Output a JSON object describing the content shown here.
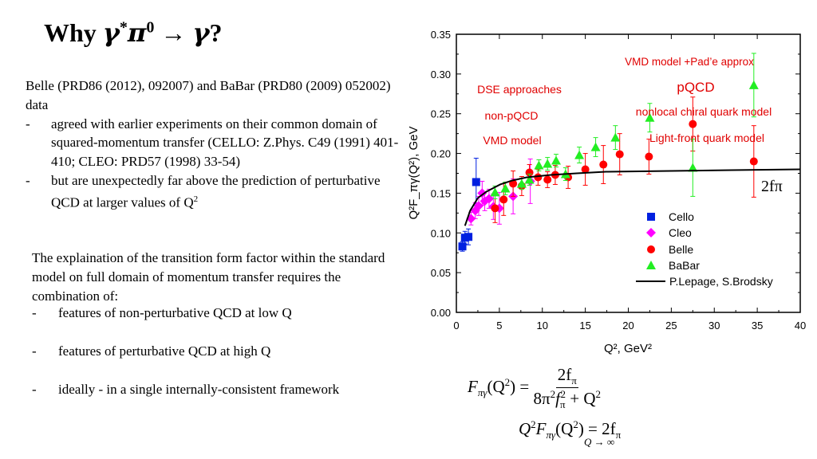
{
  "slide": {
    "title_prefix": "Why ",
    "title_math": "γ",
    "title_star": "*",
    "title_pi": "π",
    "title_zero": "0",
    "title_arrow": " → ",
    "title_gamma": "γ",
    "title_q": "?",
    "intro": "Belle (PRD86 (2012), 092007) and BaBar (PRD80 (2009) 052002) data",
    "bullets1": [
      "agreed with earlier experiments on their common domain of squared-momentum transfer (CELLO: Z.Phys. C49 (1991) 401-410; CLEO: PRD57 (1998) 33-54)",
      "but are unexpectedly far above the prediction of perturbative QCD at larger values of Q"
    ],
    "bullet_dash": "-",
    "sup2": "2",
    "para2": "The explaination of the transition form factor within the standard model on full domain of momentum transfer requires the combination of:",
    "bullets2": [
      "features of non-perturbative QCD at low Q",
      "features of perturbative QCD at high Q",
      "ideally - in a single internally-consistent framework"
    ]
  },
  "formulas": {
    "f1_lhs": "F",
    "f1_sub": "πγ",
    "f1_arg": "(Q",
    "f1_arg2": ") =",
    "f1_num": "2f",
    "f1_den": "8π",
    "f1_den2": "f",
    "f1_den3": " + Q",
    "f2_main": "Q",
    "f2_F": "F",
    "f2_rest": "(Q",
    "f2_eq": ") = 2f",
    "f2_limit": "Q → ∞",
    "pi_sub": "π",
    "two": "2"
  },
  "chart_data": {
    "type": "scatter",
    "xlabel": "Q², GeV²",
    "ylabel": "Q²F_πγ(Q²), GeV",
    "xlim": [
      0,
      40
    ],
    "ylim": [
      0,
      0.35
    ],
    "x_ticks": [
      "0",
      "5",
      "10",
      "15",
      "20",
      "25",
      "30",
      "35",
      "40"
    ],
    "y_ticks": [
      "0.00",
      "0.05",
      "0.10",
      "0.15",
      "0.20",
      "0.25",
      "0.30",
      "0.35"
    ],
    "grid": false,
    "legend_placement": "bottom-right",
    "series": [
      {
        "name": "Cello",
        "marker": "square",
        "color": "#0020e0",
        "x": [
          0.7,
          1.0,
          1.4,
          2.3
        ],
        "y": [
          0.083,
          0.094,
          0.095,
          0.164
        ],
        "err": [
          0.006,
          0.008,
          0.01,
          0.03
        ]
      },
      {
        "name": "Cleo",
        "marker": "diamond",
        "color": "#ff00ff",
        "x": [
          1.7,
          2.2,
          2.6,
          3.0,
          3.3,
          3.8,
          4.3,
          5.0,
          6.6,
          8.6
        ],
        "y": [
          0.118,
          0.128,
          0.134,
          0.15,
          0.14,
          0.143,
          0.133,
          0.131,
          0.146,
          0.165
        ],
        "err": [
          0.008,
          0.01,
          0.012,
          0.015,
          0.012,
          0.012,
          0.016,
          0.02,
          0.022,
          0.028
        ]
      },
      {
        "name": "Belle",
        "marker": "circle",
        "color": "#ff0000",
        "x": [
          4.5,
          5.5,
          6.6,
          7.6,
          8.5,
          9.5,
          10.6,
          11.5,
          13.0,
          15.0,
          17.1,
          19.0,
          22.4,
          27.5,
          34.6
        ],
        "y": [
          0.131,
          0.142,
          0.162,
          0.159,
          0.176,
          0.17,
          0.167,
          0.173,
          0.17,
          0.18,
          0.186,
          0.199,
          0.196,
          0.237,
          0.19
        ],
        "err": [
          0.018,
          0.02,
          0.016,
          0.012,
          0.01,
          0.01,
          0.01,
          0.012,
          0.014,
          0.02,
          0.024,
          0.026,
          0.022,
          0.034,
          0.045
        ]
      },
      {
        "name": "BaBar",
        "marker": "triangle",
        "color": "#22ee22",
        "x": [
          4.5,
          5.7,
          7.6,
          8.5,
          9.6,
          10.6,
          11.6,
          12.7,
          14.3,
          16.2,
          18.5,
          22.5,
          27.5,
          34.6
        ],
        "y": [
          0.151,
          0.156,
          0.162,
          0.167,
          0.185,
          0.187,
          0.191,
          0.174,
          0.198,
          0.208,
          0.22,
          0.245,
          0.182,
          0.286
        ],
        "err": [
          0.008,
          0.008,
          0.007,
          0.007,
          0.007,
          0.008,
          0.008,
          0.008,
          0.01,
          0.012,
          0.015,
          0.018,
          0.036,
          0.04
        ]
      },
      {
        "name": "P.Lepage, S.Brodsky",
        "marker": "line",
        "color": "#000000",
        "x": [
          1.0,
          1.6,
          2.5,
          3.5,
          5.1,
          6.5,
          8.2,
          11,
          14,
          17.4,
          25,
          32,
          40
        ],
        "y": [
          0.109,
          0.128,
          0.144,
          0.152,
          0.161,
          0.166,
          0.17,
          0.173,
          0.175,
          0.177,
          0.178,
          0.179,
          0.18
        ]
      }
    ],
    "annotations": [
      {
        "text": "VMD model +Pad’e approx",
        "color": "#e00000"
      },
      {
        "text": "pQCD",
        "color": "#e00000"
      },
      {
        "text": "DSE approaches",
        "color": "#e00000"
      },
      {
        "text": "nonlocal chiral quark model",
        "color": "#e00000"
      },
      {
        "text": "non-pQCD",
        "color": "#e00000"
      },
      {
        "text": "Light-front quark model",
        "color": "#e00000"
      },
      {
        "text": "VMD model",
        "color": "#e00000"
      },
      {
        "text": "2fπ",
        "color": "#000000"
      }
    ]
  }
}
